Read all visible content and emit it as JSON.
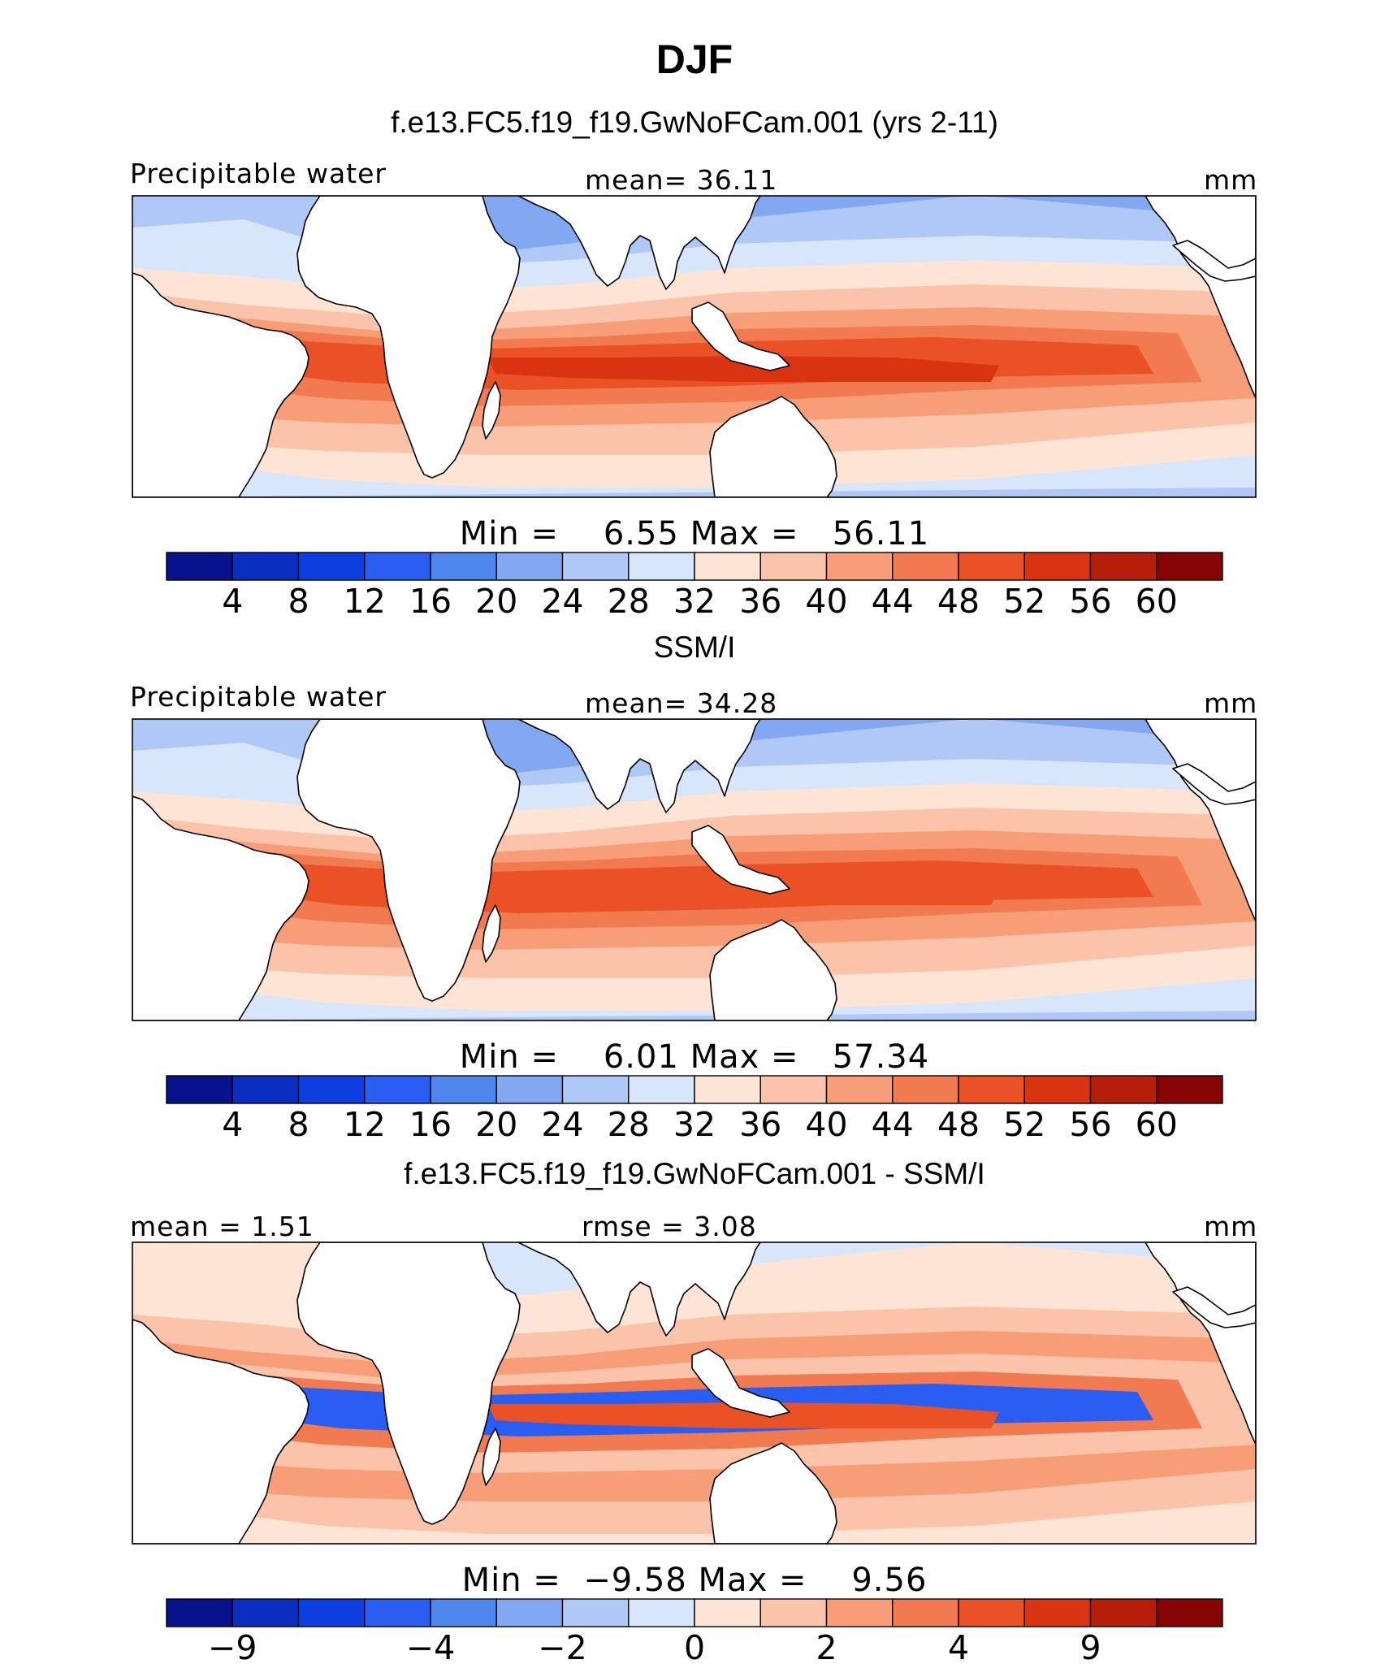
{
  "title": "DJF",
  "colors": {
    "seq": [
      "#08128a",
      "#0a2ec0",
      "#0c3ee0",
      "#2a5ef2",
      "#4f86ee",
      "#82a8f2",
      "#b0c8f6",
      "#d8e6fb",
      "#fde4d4",
      "#fbc4aa",
      "#f79e78",
      "#f27a50",
      "#ea5226",
      "#d83412",
      "#b41e0a",
      "#860404"
    ],
    "land": "#ffffff",
    "coast": "#000000"
  },
  "panels": [
    {
      "title": "f.e13.FC5.f19_f19.GwNoFCam.001 (yrs 2-11)",
      "left_label": "Precipitable water",
      "center_label": "mean=   36.11",
      "right_label": "mm",
      "minmax": "Min =    6.55 Max =   56.11"
    },
    {
      "title": "SSM/I",
      "left_label": "Precipitable water",
      "center_label": "mean=   34.28",
      "right_label": "mm",
      "minmax": "Min =    6.01 Max =   57.34"
    },
    {
      "title": "f.e13.FC5.f19_f19.GwNoFCam.001 - SSM/I",
      "left_label": "mean =    1.51",
      "center_label": "rmse =    3.08",
      "right_label": "mm",
      "minmax": "Min =  −9.58 Max =    9.56"
    }
  ],
  "chart_data": [
    {
      "type": "heatmap",
      "title": "f.e13.FC5.f19_f19.GwNoFCam.001 (yrs 2-11)",
      "variable": "Precipitable water",
      "units": "mm",
      "mean": 36.11,
      "min": 6.55,
      "max": 56.11,
      "colorbar_levels": [
        4,
        8,
        12,
        16,
        20,
        24,
        28,
        32,
        36,
        40,
        44,
        48,
        52,
        56,
        60
      ],
      "colorbar_tick_labels": [
        "4",
        "8",
        "12",
        "16",
        "20",
        "24",
        "28",
        "32",
        "36",
        "40",
        "44",
        "48",
        "52",
        "56",
        "60"
      ],
      "colorbar_ticks_at_boundaries": [
        1,
        2,
        3,
        4,
        5,
        6,
        7,
        8,
        9,
        10,
        11,
        12,
        13,
        14,
        15
      ]
    },
    {
      "type": "heatmap",
      "title": "SSM/I",
      "variable": "Precipitable water",
      "units": "mm",
      "mean": 34.28,
      "min": 6.01,
      "max": 57.34,
      "colorbar_levels": [
        4,
        8,
        12,
        16,
        20,
        24,
        28,
        32,
        36,
        40,
        44,
        48,
        52,
        56,
        60
      ],
      "colorbar_tick_labels": [
        "4",
        "8",
        "12",
        "16",
        "20",
        "24",
        "28",
        "32",
        "36",
        "40",
        "44",
        "48",
        "52",
        "56",
        "60"
      ],
      "colorbar_ticks_at_boundaries": [
        1,
        2,
        3,
        4,
        5,
        6,
        7,
        8,
        9,
        10,
        11,
        12,
        13,
        14,
        15
      ]
    },
    {
      "type": "heatmap",
      "title": "f.e13.FC5.f19_f19.GwNoFCam.001 - SSM/I",
      "units": "mm",
      "mean": 1.51,
      "rmse": 3.08,
      "min": -9.58,
      "max": 9.56,
      "colorbar_tick_labels": [
        "−9",
        "−4",
        "−2",
        "0",
        "2",
        "4",
        "9"
      ],
      "colorbar_ticks_at_boundaries": [
        1,
        4,
        6,
        8,
        10,
        12,
        14
      ]
    }
  ]
}
